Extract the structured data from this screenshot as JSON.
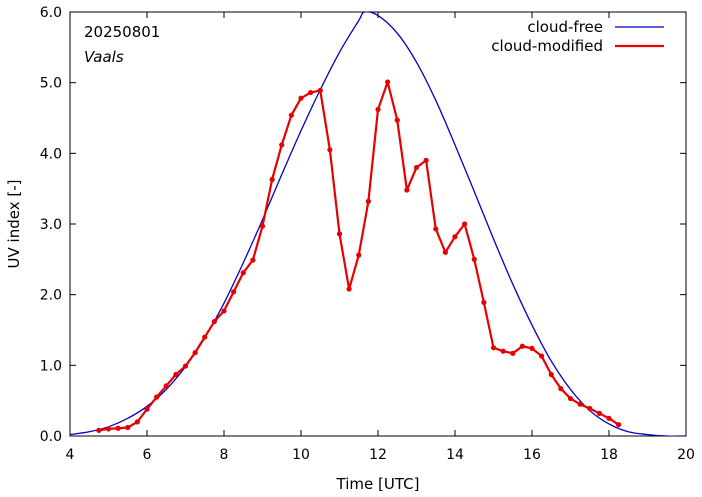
{
  "chart_data": {
    "type": "line",
    "annotations": {
      "date": "20250801",
      "location": "Vaals"
    },
    "xlabel": "Time  [UTC]",
    "ylabel": "UV index  [-]",
    "xlim": [
      4,
      20
    ],
    "ylim": [
      0,
      6
    ],
    "x_ticks": [
      4,
      6,
      8,
      10,
      12,
      14,
      16,
      18,
      20
    ],
    "y_ticks": [
      0,
      1,
      2,
      3,
      4,
      5,
      6
    ],
    "x_tick_labels": [
      "4",
      "6",
      "8",
      "10",
      "12",
      "14",
      "16",
      "18",
      "20"
    ],
    "y_tick_labels": [
      "0.0",
      "1.0",
      "2.0",
      "3.0",
      "4.0",
      "5.0",
      "6.0"
    ],
    "grid": false,
    "legend_position": "top-right",
    "series": [
      {
        "name": "cloud-free",
        "color": "#0000cc",
        "markers": false,
        "x": [
          4.0,
          4.5,
          5.0,
          5.5,
          6.0,
          6.5,
          7.0,
          7.5,
          8.0,
          8.5,
          9.0,
          9.5,
          10.0,
          10.5,
          11.0,
          11.5,
          11.65,
          12.0,
          12.5,
          13.0,
          13.5,
          14.0,
          14.5,
          15.0,
          15.5,
          16.0,
          16.5,
          17.0,
          17.5,
          18.0,
          18.5,
          19.0,
          19.5,
          20.0
        ],
        "y": [
          0.02,
          0.06,
          0.13,
          0.25,
          0.42,
          0.66,
          0.98,
          1.39,
          1.88,
          2.45,
          3.06,
          3.7,
          4.32,
          4.9,
          5.43,
          5.88,
          6.0,
          5.95,
          5.7,
          5.29,
          4.75,
          4.12,
          3.46,
          2.79,
          2.15,
          1.57,
          1.06,
          0.66,
          0.36,
          0.17,
          0.06,
          0.02,
          0.0,
          0.0
        ]
      },
      {
        "name": "cloud-modified",
        "color": "#e60000",
        "markers": true,
        "x": [
          4.75,
          5.0,
          5.25,
          5.5,
          5.75,
          6.0,
          6.25,
          6.5,
          6.75,
          7.0,
          7.25,
          7.5,
          7.75,
          8.0,
          8.25,
          8.5,
          8.75,
          9.0,
          9.25,
          9.5,
          9.75,
          10.0,
          10.25,
          10.5,
          10.75,
          11.0,
          11.25,
          11.5,
          11.75,
          12.0,
          12.25,
          12.5,
          12.75,
          13.0,
          13.25,
          13.5,
          13.75,
          14.0,
          14.25,
          14.5,
          14.75,
          15.0,
          15.25,
          15.5,
          15.75,
          16.0,
          16.25,
          16.5,
          16.75,
          17.0,
          17.25,
          17.5,
          17.75,
          18.0,
          18.25
        ],
        "y": [
          0.08,
          0.1,
          0.11,
          0.12,
          0.2,
          0.38,
          0.55,
          0.71,
          0.87,
          0.99,
          1.18,
          1.4,
          1.62,
          1.77,
          2.04,
          2.31,
          2.49,
          2.97,
          3.63,
          4.12,
          4.54,
          4.78,
          4.86,
          4.89,
          4.05,
          2.86,
          2.08,
          2.56,
          3.32,
          4.62,
          5.01,
          4.47,
          3.48,
          3.8,
          3.9,
          2.93,
          2.6,
          2.82,
          3.0,
          2.5,
          1.89,
          1.25,
          1.2,
          1.17,
          1.27,
          1.24,
          1.13,
          0.87,
          0.67,
          0.53,
          0.45,
          0.39,
          0.32,
          0.25,
          0.16
        ]
      }
    ]
  }
}
